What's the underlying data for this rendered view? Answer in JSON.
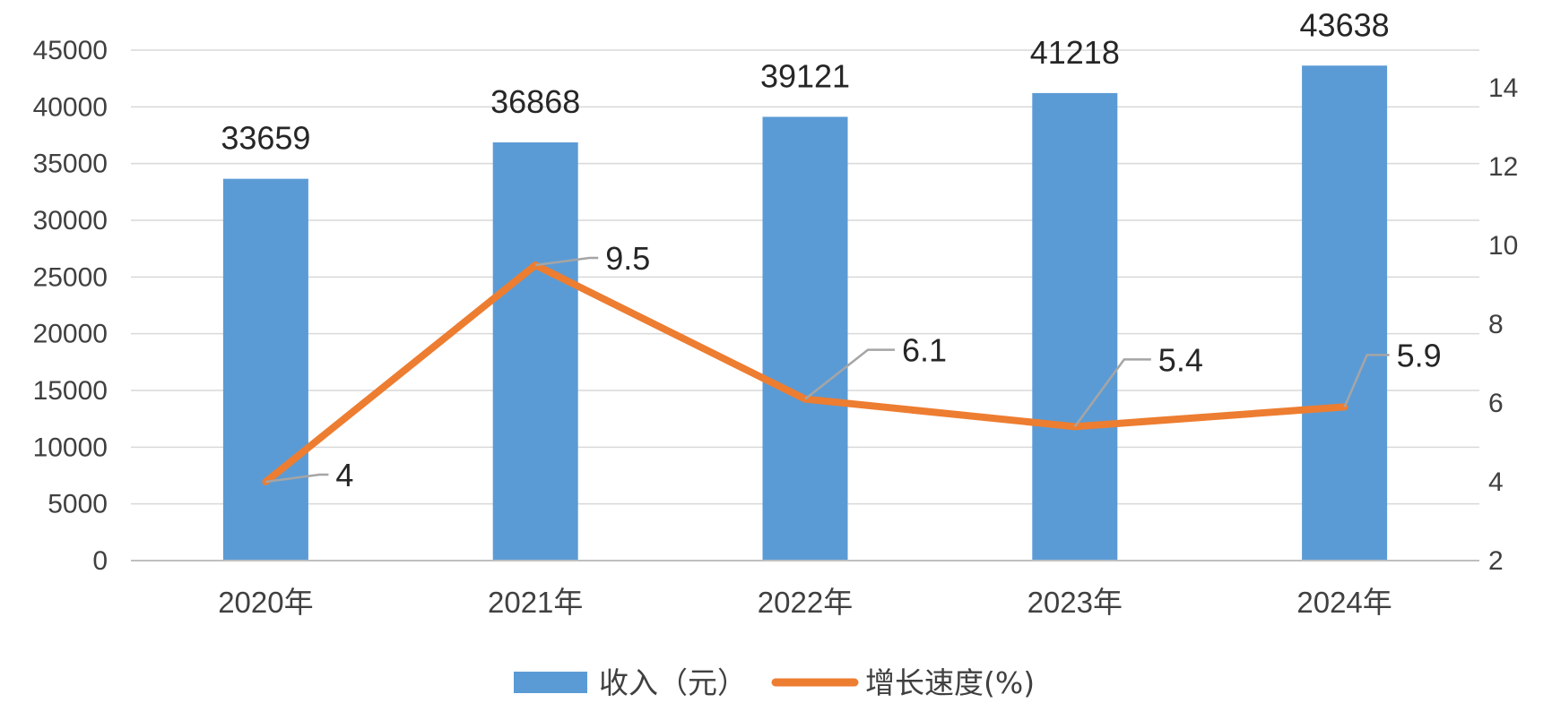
{
  "chart_data": {
    "type": "bar",
    "title": "",
    "categories": [
      "2020年",
      "2021年",
      "2022年",
      "2023年",
      "2024年"
    ],
    "series": [
      {
        "name": "收入（元）",
        "type": "bar",
        "axis": "left",
        "values": [
          33659,
          36868,
          39121,
          41218,
          43638
        ],
        "color": "#5B9BD5"
      },
      {
        "name": "增长速度(%)",
        "type": "line",
        "axis": "right",
        "values": [
          4,
          9.5,
          6.1,
          5.4,
          5.9
        ],
        "labels": [
          "4",
          "9.5",
          "6.1",
          "5.4",
          "5.9"
        ],
        "color": "#ED7D31"
      }
    ],
    "y_left": {
      "ylim": [
        0,
        45000
      ],
      "ticks": [
        "0",
        "5000",
        "10000",
        "15000",
        "20000",
        "25000",
        "30000",
        "35000",
        "40000",
        "45000"
      ]
    },
    "y_right": {
      "ylim": [
        2,
        14
      ],
      "ticks": [
        "2",
        "4",
        "6",
        "8",
        "10",
        "12",
        "14"
      ]
    },
    "grid": true,
    "legend_position": "bottom",
    "gridline_color": "#D9D9D9",
    "leader_line_color": "#A5A5A5"
  }
}
